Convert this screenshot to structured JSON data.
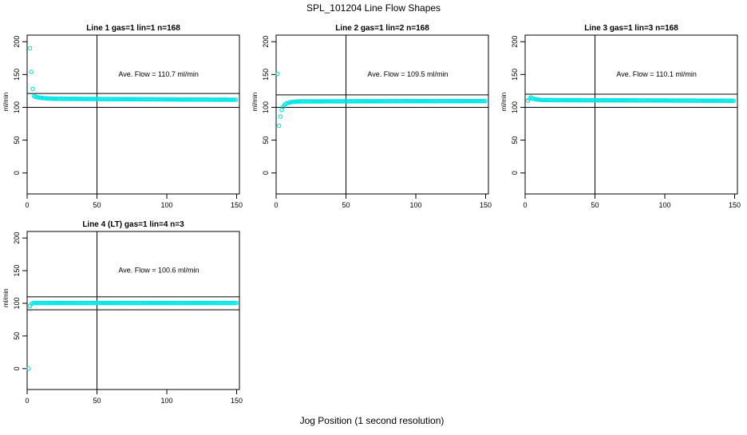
{
  "title": "SPL_101204  Line Flow Shapes",
  "xlabel": "Jog Position (1 second resolution)",
  "colors": {
    "points": "#00e5e5",
    "axis": "#000000",
    "background": "#ffffff"
  },
  "chart_data": [
    {
      "type": "scatter",
      "title": "Line 1 gas=1 lin=1 n=168",
      "ylabel": "ml/min",
      "avg_text": "Ave. Flow =  110.7  ml/min",
      "xlim": [
        0,
        152
      ],
      "ylim": [
        -32,
        210
      ],
      "xticks": [
        0,
        50,
        100,
        150
      ],
      "yticks": [
        0,
        50,
        100,
        150,
        200
      ],
      "vline": 50,
      "hlines": [
        100,
        121
      ],
      "points": [
        [
          2,
          190
        ],
        [
          3,
          154
        ],
        [
          4,
          128
        ],
        [
          5,
          117
        ],
        [
          6,
          116
        ],
        [
          7,
          115.5
        ],
        [
          8,
          115
        ],
        [
          9,
          114.8
        ],
        [
          10,
          114.5
        ],
        [
          11,
          114.2
        ],
        [
          12,
          114
        ],
        [
          13,
          113.8
        ],
        [
          14,
          113.6
        ],
        [
          15,
          113.5
        ],
        [
          16,
          113.4
        ],
        [
          17,
          113.3
        ],
        [
          18,
          113.2
        ],
        [
          19,
          113.1
        ],
        [
          20,
          113
        ]
      ],
      "series": [
        {
          "x_start": 21,
          "x_end": 150,
          "y_start": 113,
          "y_end": 111.5
        }
      ]
    },
    {
      "type": "scatter",
      "title": "Line 2 gas=1 lin=2 n=168",
      "ylabel": "ml/min",
      "avg_text": "Ave. Flow =  109.5  ml/min",
      "xlim": [
        0,
        152
      ],
      "ylim": [
        -32,
        210
      ],
      "xticks": [
        0,
        50,
        100,
        150
      ],
      "yticks": [
        0,
        50,
        100,
        150,
        200
      ],
      "vline": 50,
      "hlines": [
        100,
        119
      ],
      "points": [
        [
          1,
          151
        ],
        [
          2,
          72
        ],
        [
          3,
          86
        ],
        [
          4,
          96
        ],
        [
          5,
          101
        ],
        [
          6,
          104
        ],
        [
          7,
          105.5
        ],
        [
          8,
          106.5
        ],
        [
          9,
          107
        ],
        [
          10,
          107.5
        ],
        [
          11,
          108
        ],
        [
          12,
          108.2
        ],
        [
          13,
          108.4
        ],
        [
          14,
          108.6
        ],
        [
          15,
          108.8
        ],
        [
          16,
          109
        ]
      ],
      "series": [
        {
          "x_start": 17,
          "x_end": 150,
          "y_start": 109,
          "y_end": 109.6
        }
      ]
    },
    {
      "type": "scatter",
      "title": "Line 3 gas=1 lin=3 n=168",
      "ylabel": "ml/min",
      "avg_text": "Ave. Flow =  110.1  ml/min",
      "xlim": [
        0,
        152
      ],
      "ylim": [
        -32,
        210
      ],
      "xticks": [
        0,
        50,
        100,
        150
      ],
      "yticks": [
        0,
        50,
        100,
        150,
        200
      ],
      "vline": 50,
      "hlines": [
        100,
        120
      ],
      "points": [
        [
          2,
          110
        ],
        [
          3,
          113
        ],
        [
          4,
          115
        ],
        [
          5,
          114
        ],
        [
          6,
          113
        ],
        [
          7,
          112.5
        ],
        [
          8,
          112
        ],
        [
          9,
          111.8
        ],
        [
          10,
          111.6
        ],
        [
          11,
          111.4
        ],
        [
          12,
          111.2
        ],
        [
          13,
          111.1
        ],
        [
          14,
          111
        ]
      ],
      "series": [
        {
          "x_start": 15,
          "x_end": 150,
          "y_start": 111,
          "y_end": 110
        }
      ]
    },
    {
      "type": "scatter",
      "title": "Line 4 (LT) gas=1 lin=4 n=3",
      "ylabel": "ml/min",
      "avg_text": "Ave. Flow =  100.6  ml/min",
      "xlim": [
        0,
        152
      ],
      "ylim": [
        -32,
        210
      ],
      "xticks": [
        0,
        50,
        100,
        150
      ],
      "yticks": [
        0,
        50,
        100,
        150,
        200
      ],
      "vline": 50,
      "hlines": [
        90,
        110
      ],
      "points": [
        [
          1,
          0
        ],
        [
          2,
          96
        ],
        [
          3,
          99
        ],
        [
          4,
          100
        ],
        [
          5,
          100.5
        ],
        [
          6,
          100.5
        ]
      ],
      "series": [
        {
          "x_start": 7,
          "x_end": 150,
          "y_start": 100.5,
          "y_end": 100.5
        }
      ]
    }
  ]
}
